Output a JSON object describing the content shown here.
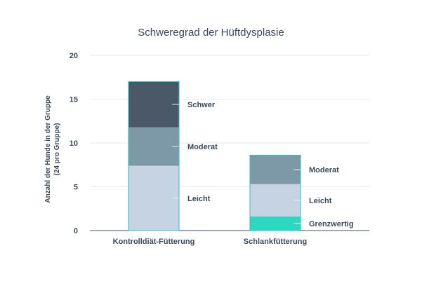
{
  "chart_data": {
    "type": "bar",
    "stacked": true,
    "title": "Schweregrad der Hüftdysplasie",
    "ylabel_line1": "Anzahl der Hunde in der Gruppe",
    "ylabel_line2": "(24 pro Gruppe)",
    "xlabel": "",
    "ylim": [
      0,
      20
    ],
    "yticks": [
      0,
      5,
      10,
      15,
      20
    ],
    "grid": true,
    "legend": "none",
    "categories": [
      "Kontrolldiät-Fütterung",
      "Schlankfütterung"
    ],
    "series": [
      {
        "name": "Grenzwertig",
        "color": "#2ed8c0",
        "values": [
          0,
          1.6
        ]
      },
      {
        "name": "Leicht",
        "color": "#c5d3e3",
        "values": [
          7.4,
          3.7
        ]
      },
      {
        "name": "Moderat",
        "color": "#7d98a6",
        "values": [
          4.4,
          3.3
        ]
      },
      {
        "name": "Schwer",
        "color": "#4a5868",
        "values": [
          5.2,
          0
        ]
      }
    ],
    "bar_outline_color": "#2bbfc8"
  }
}
